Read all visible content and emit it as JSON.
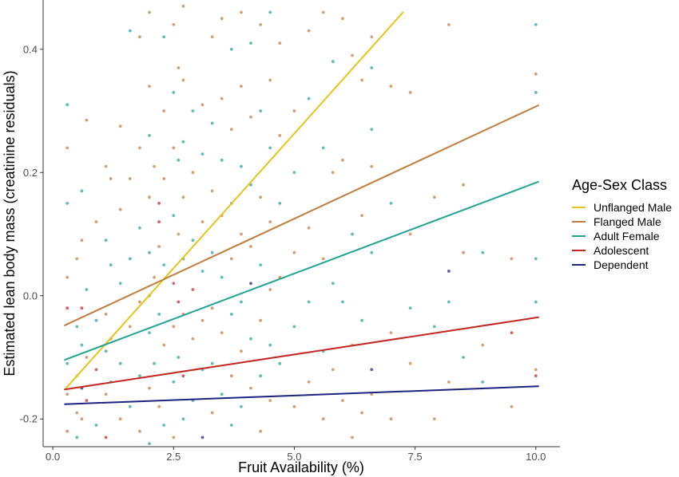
{
  "chart_data": {
    "type": "scatter",
    "title": "",
    "xlabel": "Fruit Availability (%)",
    "ylabel": "Estimated lean body mass (creatinine residuals)",
    "xlim": [
      -0.2,
      10.5
    ],
    "ylim": [
      -0.245,
      0.48
    ],
    "x_ticks": [
      0.0,
      2.5,
      5.0,
      7.5,
      10.0
    ],
    "x_tick_labels": [
      "0.0",
      "2.5",
      "5.0",
      "7.5",
      "10.0"
    ],
    "y_ticks": [
      -0.2,
      0.0,
      0.2,
      0.4
    ],
    "y_tick_labels": [
      "-0.2",
      "0.0",
      "0.2",
      "0.4"
    ],
    "grid": false,
    "legend": {
      "title": "Age-Sex Class",
      "placement": "right"
    },
    "series": [
      {
        "name": "Unflanged Male",
        "color": "#e8c31d",
        "line": {
          "x": [
            0.25,
            7.25
          ],
          "y": [
            -0.152,
            0.46
          ]
        }
      },
      {
        "name": "Flanged Male",
        "color": "#c07c3a",
        "line": {
          "x": [
            0.25,
            10.05
          ],
          "y": [
            -0.048,
            0.309
          ]
        }
      },
      {
        "name": "Adult Female",
        "color": "#1ea394",
        "line": {
          "x": [
            0.25,
            10.05
          ],
          "y": [
            -0.104,
            0.185
          ]
        }
      },
      {
        "name": "Adolescent",
        "color": "#c4271f",
        "line": {
          "x": [
            0.25,
            10.05
          ],
          "y": [
            -0.152,
            -0.035
          ]
        }
      },
      {
        "name": "Dependent",
        "color": "#1a237e",
        "line": {
          "x": [
            0.25,
            10.05
          ],
          "y": [
            -0.176,
            -0.147
          ]
        }
      }
    ],
    "points": [
      {
        "x": 0.3,
        "y": 0.31,
        "s": 2
      },
      {
        "x": 0.3,
        "y": 0.24,
        "s": 1
      },
      {
        "x": 0.3,
        "y": 0.15,
        "s": 2
      },
      {
        "x": 0.3,
        "y": 0.03,
        "s": 1
      },
      {
        "x": 0.3,
        "y": -0.02,
        "s": 3
      },
      {
        "x": 0.3,
        "y": -0.11,
        "s": 2
      },
      {
        "x": 0.3,
        "y": -0.16,
        "s": 1
      },
      {
        "x": 0.3,
        "y": -0.22,
        "s": 1
      },
      {
        "x": 0.5,
        "y": 0.06,
        "s": 1
      },
      {
        "x": 0.5,
        "y": -0.05,
        "s": 2
      },
      {
        "x": 0.5,
        "y": -0.13,
        "s": 0
      },
      {
        "x": 0.5,
        "y": -0.19,
        "s": 1
      },
      {
        "x": 0.5,
        "y": -0.23,
        "s": 2
      },
      {
        "x": 0.6,
        "y": 0.17,
        "s": 2
      },
      {
        "x": 0.6,
        "y": 0.09,
        "s": 1
      },
      {
        "x": 0.6,
        "y": -0.02,
        "s": 3
      },
      {
        "x": 0.6,
        "y": -0.08,
        "s": 2
      },
      {
        "x": 0.6,
        "y": -0.15,
        "s": 4
      },
      {
        "x": 0.6,
        "y": -0.2,
        "s": 1
      },
      {
        "x": 0.7,
        "y": 0.285,
        "s": 1
      },
      {
        "x": 0.7,
        "y": 0.01,
        "s": 2
      },
      {
        "x": 0.7,
        "y": -0.1,
        "s": 1
      },
      {
        "x": 0.7,
        "y": -0.17,
        "s": 3
      },
      {
        "x": 0.9,
        "y": 0.12,
        "s": 1
      },
      {
        "x": 0.9,
        "y": -0.04,
        "s": 2
      },
      {
        "x": 0.9,
        "y": -0.12,
        "s": 3
      },
      {
        "x": 0.9,
        "y": -0.21,
        "s": 2
      },
      {
        "x": 1.1,
        "y": 0.21,
        "s": 1
      },
      {
        "x": 1.1,
        "y": 0.09,
        "s": 2
      },
      {
        "x": 1.1,
        "y": -0.03,
        "s": 1
      },
      {
        "x": 1.1,
        "y": -0.09,
        "s": 2
      },
      {
        "x": 1.1,
        "y": -0.16,
        "s": 1
      },
      {
        "x": 1.1,
        "y": -0.23,
        "s": 3
      },
      {
        "x": 1.2,
        "y": 0.19,
        "s": 1
      },
      {
        "x": 1.2,
        "y": 0.05,
        "s": 2
      },
      {
        "x": 1.2,
        "y": -0.07,
        "s": 1
      },
      {
        "x": 1.2,
        "y": -0.14,
        "s": 2
      },
      {
        "x": 1.4,
        "y": 0.275,
        "s": 1
      },
      {
        "x": 1.4,
        "y": 0.14,
        "s": 1
      },
      {
        "x": 1.4,
        "y": 0.02,
        "s": 2
      },
      {
        "x": 1.4,
        "y": -0.11,
        "s": 2
      },
      {
        "x": 1.4,
        "y": -0.2,
        "s": 1
      },
      {
        "x": 1.6,
        "y": 0.43,
        "s": 2
      },
      {
        "x": 1.6,
        "y": 0.19,
        "s": 1
      },
      {
        "x": 1.6,
        "y": 0.06,
        "s": 2
      },
      {
        "x": 1.6,
        "y": -0.05,
        "s": 1
      },
      {
        "x": 1.6,
        "y": -0.18,
        "s": 2
      },
      {
        "x": 1.8,
        "y": 0.42,
        "s": 1
      },
      {
        "x": 1.8,
        "y": 0.24,
        "s": 1
      },
      {
        "x": 1.8,
        "y": 0.11,
        "s": 2
      },
      {
        "x": 1.8,
        "y": -0.01,
        "s": 1
      },
      {
        "x": 1.8,
        "y": -0.13,
        "s": 2
      },
      {
        "x": 1.8,
        "y": -0.22,
        "s": 1
      },
      {
        "x": 2.0,
        "y": 0.46,
        "s": 1
      },
      {
        "x": 2.0,
        "y": 0.34,
        "s": 1
      },
      {
        "x": 2.0,
        "y": 0.26,
        "s": 2
      },
      {
        "x": 2.0,
        "y": 0.16,
        "s": 1
      },
      {
        "x": 2.0,
        "y": 0.07,
        "s": 2
      },
      {
        "x": 2.0,
        "y": 0.0,
        "s": 1
      },
      {
        "x": 2.0,
        "y": -0.06,
        "s": 2
      },
      {
        "x": 2.0,
        "y": -0.15,
        "s": 1
      },
      {
        "x": 2.0,
        "y": -0.24,
        "s": 2
      },
      {
        "x": 2.1,
        "y": 0.21,
        "s": 1
      },
      {
        "x": 2.1,
        "y": 0.03,
        "s": 1
      },
      {
        "x": 2.1,
        "y": -0.11,
        "s": 2
      },
      {
        "x": 2.2,
        "y": 0.15,
        "s": 3
      },
      {
        "x": 2.2,
        "y": 0.12,
        "s": 3
      },
      {
        "x": 2.2,
        "y": 0.08,
        "s": 1
      },
      {
        "x": 2.2,
        "y": -0.03,
        "s": 2
      },
      {
        "x": 2.2,
        "y": -0.18,
        "s": 1
      },
      {
        "x": 2.3,
        "y": 0.42,
        "s": 2
      },
      {
        "x": 2.3,
        "y": 0.3,
        "s": 1
      },
      {
        "x": 2.3,
        "y": 0.19,
        "s": 1
      },
      {
        "x": 2.3,
        "y": 0.05,
        "s": 2
      },
      {
        "x": 2.3,
        "y": -0.08,
        "s": 1
      },
      {
        "x": 2.3,
        "y": -0.21,
        "s": 2
      },
      {
        "x": 2.5,
        "y": 0.44,
        "s": 1
      },
      {
        "x": 2.5,
        "y": 0.33,
        "s": 2
      },
      {
        "x": 2.5,
        "y": 0.24,
        "s": 1
      },
      {
        "x": 2.5,
        "y": 0.13,
        "s": 2
      },
      {
        "x": 2.5,
        "y": 0.02,
        "s": 3
      },
      {
        "x": 2.5,
        "y": -0.05,
        "s": 1
      },
      {
        "x": 2.5,
        "y": -0.14,
        "s": 2
      },
      {
        "x": 2.5,
        "y": -0.23,
        "s": 1
      },
      {
        "x": 2.6,
        "y": 0.37,
        "s": 1
      },
      {
        "x": 2.6,
        "y": 0.22,
        "s": 2
      },
      {
        "x": 2.6,
        "y": 0.1,
        "s": 1
      },
      {
        "x": 2.6,
        "y": -0.01,
        "s": 3
      },
      {
        "x": 2.6,
        "y": -0.1,
        "s": 2
      },
      {
        "x": 2.7,
        "y": 0.47,
        "s": 1
      },
      {
        "x": 2.7,
        "y": 0.35,
        "s": 1
      },
      {
        "x": 2.7,
        "y": 0.25,
        "s": 2
      },
      {
        "x": 2.7,
        "y": 0.16,
        "s": 1
      },
      {
        "x": 2.7,
        "y": 0.06,
        "s": 2
      },
      {
        "x": 2.7,
        "y": -0.03,
        "s": 1
      },
      {
        "x": 2.7,
        "y": -0.13,
        "s": 3
      },
      {
        "x": 2.7,
        "y": -0.2,
        "s": 2
      },
      {
        "x": 2.9,
        "y": 0.3,
        "s": 2
      },
      {
        "x": 2.9,
        "y": 0.2,
        "s": 1
      },
      {
        "x": 2.9,
        "y": 0.09,
        "s": 2
      },
      {
        "x": 2.9,
        "y": 0.01,
        "s": 3
      },
      {
        "x": 2.9,
        "y": -0.07,
        "s": 1
      },
      {
        "x": 2.9,
        "y": -0.17,
        "s": 2
      },
      {
        "x": 3.1,
        "y": 0.31,
        "s": 1
      },
      {
        "x": 3.1,
        "y": 0.23,
        "s": 2
      },
      {
        "x": 3.1,
        "y": 0.12,
        "s": 1
      },
      {
        "x": 3.1,
        "y": 0.04,
        "s": 2
      },
      {
        "x": 3.1,
        "y": -0.04,
        "s": 1
      },
      {
        "x": 3.1,
        "y": -0.12,
        "s": 2
      },
      {
        "x": 3.1,
        "y": -0.23,
        "s": 4
      },
      {
        "x": 3.3,
        "y": 0.42,
        "s": 1
      },
      {
        "x": 3.3,
        "y": 0.28,
        "s": 2
      },
      {
        "x": 3.3,
        "y": 0.17,
        "s": 1
      },
      {
        "x": 3.3,
        "y": 0.07,
        "s": 2
      },
      {
        "x": 3.3,
        "y": -0.02,
        "s": 1
      },
      {
        "x": 3.3,
        "y": -0.11,
        "s": 2
      },
      {
        "x": 3.3,
        "y": -0.19,
        "s": 1
      },
      {
        "x": 3.5,
        "y": 0.45,
        "s": 1
      },
      {
        "x": 3.5,
        "y": 0.32,
        "s": 1
      },
      {
        "x": 3.5,
        "y": 0.22,
        "s": 2
      },
      {
        "x": 3.5,
        "y": 0.13,
        "s": 1
      },
      {
        "x": 3.5,
        "y": 0.03,
        "s": 2
      },
      {
        "x": 3.5,
        "y": -0.06,
        "s": 1
      },
      {
        "x": 3.5,
        "y": -0.16,
        "s": 2
      },
      {
        "x": 3.7,
        "y": 0.4,
        "s": 2
      },
      {
        "x": 3.7,
        "y": 0.27,
        "s": 1
      },
      {
        "x": 3.7,
        "y": 0.15,
        "s": 2
      },
      {
        "x": 3.7,
        "y": 0.06,
        "s": 1
      },
      {
        "x": 3.7,
        "y": -0.03,
        "s": 2
      },
      {
        "x": 3.7,
        "y": -0.13,
        "s": 1
      },
      {
        "x": 3.7,
        "y": -0.21,
        "s": 2
      },
      {
        "x": 3.9,
        "y": 0.46,
        "s": 1
      },
      {
        "x": 3.9,
        "y": 0.34,
        "s": 1
      },
      {
        "x": 3.9,
        "y": 0.21,
        "s": 2
      },
      {
        "x": 3.9,
        "y": 0.1,
        "s": 1
      },
      {
        "x": 3.9,
        "y": -0.01,
        "s": 2
      },
      {
        "x": 3.9,
        "y": -0.09,
        "s": 1
      },
      {
        "x": 3.9,
        "y": -0.18,
        "s": 2
      },
      {
        "x": 4.1,
        "y": 0.41,
        "s": 2
      },
      {
        "x": 4.1,
        "y": 0.29,
        "s": 1
      },
      {
        "x": 4.1,
        "y": 0.18,
        "s": 2
      },
      {
        "x": 4.1,
        "y": 0.08,
        "s": 1
      },
      {
        "x": 4.1,
        "y": 0.02,
        "s": 4
      },
      {
        "x": 4.1,
        "y": -0.07,
        "s": 2
      },
      {
        "x": 4.1,
        "y": -0.15,
        "s": 1
      },
      {
        "x": 4.3,
        "y": 0.44,
        "s": 1
      },
      {
        "x": 4.3,
        "y": 0.3,
        "s": 2
      },
      {
        "x": 4.3,
        "y": 0.16,
        "s": 1
      },
      {
        "x": 4.3,
        "y": 0.05,
        "s": 2
      },
      {
        "x": 4.3,
        "y": -0.04,
        "s": 1
      },
      {
        "x": 4.3,
        "y": -0.13,
        "s": 2
      },
      {
        "x": 4.3,
        "y": -0.22,
        "s": 1
      },
      {
        "x": 4.5,
        "y": 0.46,
        "s": 2
      },
      {
        "x": 4.5,
        "y": 0.35,
        "s": 1
      },
      {
        "x": 4.5,
        "y": 0.24,
        "s": 2
      },
      {
        "x": 4.5,
        "y": 0.12,
        "s": 1
      },
      {
        "x": 4.5,
        "y": 0.01,
        "s": 1
      },
      {
        "x": 4.5,
        "y": -0.08,
        "s": 2
      },
      {
        "x": 4.5,
        "y": -0.17,
        "s": 1
      },
      {
        "x": 4.7,
        "y": 0.41,
        "s": 1
      },
      {
        "x": 4.7,
        "y": 0.26,
        "s": 1
      },
      {
        "x": 4.7,
        "y": 0.15,
        "s": 2
      },
      {
        "x": 4.7,
        "y": 0.03,
        "s": 1
      },
      {
        "x": 4.7,
        "y": -0.11,
        "s": 2
      },
      {
        "x": 5.0,
        "y": 0.3,
        "s": 1
      },
      {
        "x": 5.0,
        "y": 0.2,
        "s": 2
      },
      {
        "x": 5.0,
        "y": 0.07,
        "s": 1
      },
      {
        "x": 5.0,
        "y": -0.05,
        "s": 2
      },
      {
        "x": 5.0,
        "y": -0.18,
        "s": 1
      },
      {
        "x": 5.3,
        "y": 0.43,
        "s": 1
      },
      {
        "x": 5.3,
        "y": 0.32,
        "s": 2
      },
      {
        "x": 5.3,
        "y": 0.11,
        "s": 1
      },
      {
        "x": 5.3,
        "y": -0.01,
        "s": 2
      },
      {
        "x": 5.3,
        "y": -0.14,
        "s": 1
      },
      {
        "x": 5.6,
        "y": 0.46,
        "s": 1
      },
      {
        "x": 5.6,
        "y": 0.24,
        "s": 2
      },
      {
        "x": 5.6,
        "y": 0.06,
        "s": 1
      },
      {
        "x": 5.6,
        "y": -0.09,
        "s": 2
      },
      {
        "x": 5.6,
        "y": -0.2,
        "s": 1
      },
      {
        "x": 5.8,
        "y": 0.38,
        "s": 2
      },
      {
        "x": 5.8,
        "y": 0.2,
        "s": 1
      },
      {
        "x": 5.8,
        "y": 0.02,
        "s": 2
      },
      {
        "x": 5.8,
        "y": -0.12,
        "s": 1
      },
      {
        "x": 6.0,
        "y": 0.45,
        "s": 1
      },
      {
        "x": 6.0,
        "y": 0.22,
        "s": 1
      },
      {
        "x": 6.0,
        "y": -0.01,
        "s": 2
      },
      {
        "x": 6.0,
        "y": -0.17,
        "s": 1
      },
      {
        "x": 6.2,
        "y": 0.39,
        "s": 1
      },
      {
        "x": 6.2,
        "y": 0.1,
        "s": 2
      },
      {
        "x": 6.2,
        "y": -0.08,
        "s": 1
      },
      {
        "x": 6.2,
        "y": -0.23,
        "s": 1
      },
      {
        "x": 6.4,
        "y": 0.35,
        "s": 1
      },
      {
        "x": 6.4,
        "y": 0.13,
        "s": 1
      },
      {
        "x": 6.4,
        "y": -0.04,
        "s": 2
      },
      {
        "x": 6.4,
        "y": -0.19,
        "s": 1
      },
      {
        "x": 6.6,
        "y": 0.42,
        "s": 1
      },
      {
        "x": 6.6,
        "y": 0.37,
        "s": 2
      },
      {
        "x": 6.6,
        "y": 0.27,
        "s": 2
      },
      {
        "x": 6.6,
        "y": 0.21,
        "s": 1
      },
      {
        "x": 6.6,
        "y": 0.07,
        "s": 2
      },
      {
        "x": 6.6,
        "y": -0.12,
        "s": 4
      },
      {
        "x": 6.6,
        "y": -0.16,
        "s": 1
      },
      {
        "x": 7.0,
        "y": 0.34,
        "s": 1
      },
      {
        "x": 7.0,
        "y": 0.15,
        "s": 2
      },
      {
        "x": 7.0,
        "y": -0.06,
        "s": 1
      },
      {
        "x": 7.0,
        "y": -0.2,
        "s": 1
      },
      {
        "x": 7.4,
        "y": 0.33,
        "s": 1
      },
      {
        "x": 7.4,
        "y": 0.1,
        "s": 1
      },
      {
        "x": 7.4,
        "y": -0.02,
        "s": 2
      },
      {
        "x": 7.4,
        "y": -0.11,
        "s": 1
      },
      {
        "x": 7.9,
        "y": 0.16,
        "s": 1
      },
      {
        "x": 7.9,
        "y": -0.05,
        "s": 2
      },
      {
        "x": 7.9,
        "y": -0.2,
        "s": 1
      },
      {
        "x": 8.2,
        "y": 0.44,
        "s": 1
      },
      {
        "x": 8.2,
        "y": 0.04,
        "s": 4
      },
      {
        "x": 8.2,
        "y": -0.01,
        "s": 2
      },
      {
        "x": 8.2,
        "y": -0.14,
        "s": 1
      },
      {
        "x": 8.5,
        "y": 0.18,
        "s": 1
      },
      {
        "x": 8.5,
        "y": 0.07,
        "s": 1
      },
      {
        "x": 8.5,
        "y": -0.1,
        "s": 2
      },
      {
        "x": 8.9,
        "y": 0.07,
        "s": 2
      },
      {
        "x": 8.9,
        "y": -0.08,
        "s": 1
      },
      {
        "x": 8.9,
        "y": -0.14,
        "s": 2
      },
      {
        "x": 9.5,
        "y": 0.06,
        "s": 1
      },
      {
        "x": 9.5,
        "y": -0.06,
        "s": 3
      },
      {
        "x": 9.5,
        "y": -0.18,
        "s": 1
      },
      {
        "x": 10.0,
        "y": 0.44,
        "s": 2
      },
      {
        "x": 10.0,
        "y": 0.36,
        "s": 1
      },
      {
        "x": 10.0,
        "y": 0.33,
        "s": 2
      },
      {
        "x": 10.0,
        "y": 0.06,
        "s": 2
      },
      {
        "x": 10.0,
        "y": -0.01,
        "s": 2
      },
      {
        "x": 10.0,
        "y": -0.12,
        "s": 1
      },
      {
        "x": 10.0,
        "y": -0.13,
        "s": 3
      }
    ]
  }
}
